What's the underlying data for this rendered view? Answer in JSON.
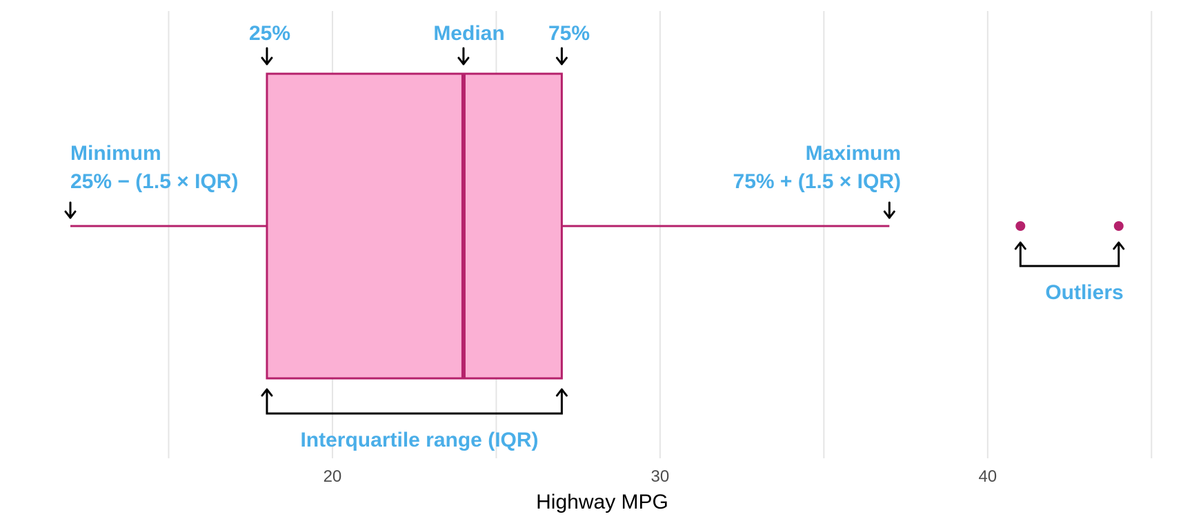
{
  "chart_data": {
    "type": "box",
    "xlabel": "Highway MPG",
    "xlim": [
      12,
      45.5
    ],
    "x_ticks": [
      20,
      30,
      40
    ],
    "minor_gridlines": [
      15,
      25,
      35,
      45
    ],
    "grid": true,
    "box": {
      "whisker_low": 12,
      "q1": 18,
      "median": 24,
      "q3": 27,
      "whisker_high": 37,
      "outliers": [
        41,
        44
      ]
    },
    "annotations": {
      "q1": "25%",
      "median": "Median",
      "q3": "75%",
      "minimum_title": "Minimum",
      "minimum_formula": "25% − (1.5 × IQR)",
      "maximum_title": "Maximum",
      "maximum_formula": "75% + (1.5 × IQR)",
      "iqr": "Interquartile range (IQR)",
      "outliers": "Outliers"
    }
  },
  "colors": {
    "box_fill": "#fbb0d4",
    "box_stroke": "#b5216b",
    "annotation": "#4aaee8",
    "arrow": "#000000",
    "grid": "#e5e5e5",
    "tick_text": "#4d4d4d"
  }
}
